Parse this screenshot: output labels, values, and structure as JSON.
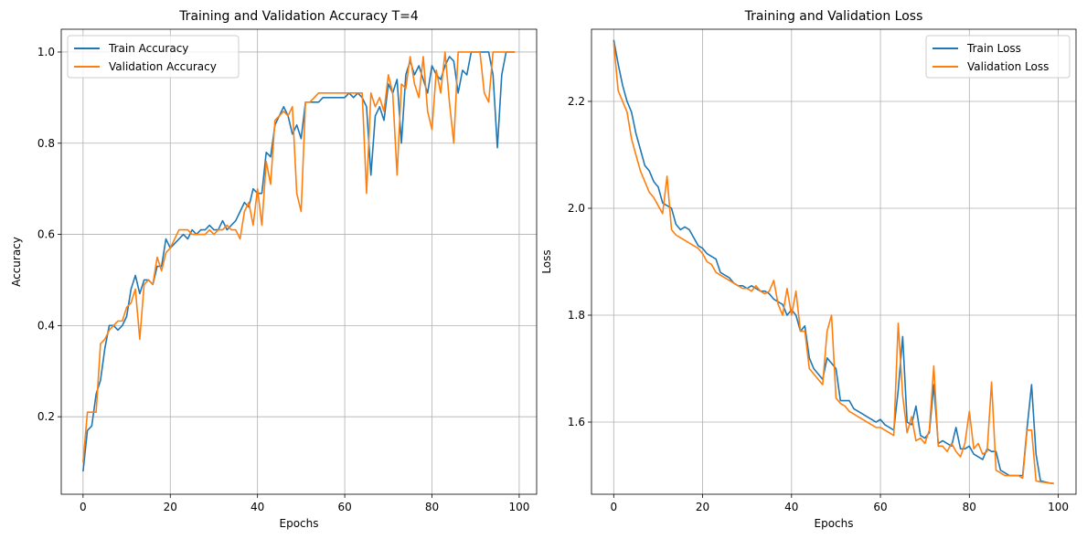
{
  "chart_data": [
    {
      "type": "line",
      "title": "Training and Validation Accuracy T=4",
      "xlabel": "Epochs",
      "ylabel": "Accuracy",
      "xlim": [
        -5,
        104
      ],
      "ylim": [
        0.03,
        1.05
      ],
      "xticks": [
        0,
        20,
        40,
        60,
        80,
        100
      ],
      "yticks": [
        0.2,
        0.4,
        0.6,
        0.8,
        1.0
      ],
      "xtick_labels": [
        "0",
        "20",
        "40",
        "60",
        "80",
        "100"
      ],
      "ytick_labels": [
        "0.2",
        "0.4",
        "0.6",
        "0.8",
        "1.0"
      ],
      "grid": true,
      "legend_position": "top-left",
      "series": [
        {
          "name": "Train Accuracy",
          "color": "#1f77b4",
          "values": [
            0.08,
            0.17,
            0.18,
            0.25,
            0.28,
            0.35,
            0.4,
            0.4,
            0.39,
            0.4,
            0.42,
            0.48,
            0.51,
            0.47,
            0.5,
            0.5,
            0.49,
            0.53,
            0.53,
            0.59,
            0.57,
            0.58,
            0.59,
            0.6,
            0.59,
            0.61,
            0.6,
            0.61,
            0.61,
            0.62,
            0.61,
            0.61,
            0.63,
            0.61,
            0.62,
            0.63,
            0.65,
            0.67,
            0.66,
            0.7,
            0.69,
            0.69,
            0.78,
            0.77,
            0.84,
            0.86,
            0.88,
            0.86,
            0.82,
            0.84,
            0.81,
            0.89,
            0.89,
            0.89,
            0.89,
            0.9,
            0.9,
            0.9,
            0.9,
            0.9,
            0.9,
            0.91,
            0.9,
            0.91,
            0.9,
            0.88,
            0.73,
            0.86,
            0.88,
            0.85,
            0.93,
            0.91,
            0.94,
            0.8,
            0.95,
            0.98,
            0.95,
            0.97,
            0.94,
            0.91,
            0.97,
            0.95,
            0.94,
            0.97,
            0.99,
            0.98,
            0.91,
            0.96,
            0.95,
            1.0,
            1.0,
            1.0,
            1.0,
            1.0,
            0.95,
            0.79,
            0.95,
            1.0,
            1.0,
            1.0
          ]
        },
        {
          "name": "Validation Accuracy",
          "color": "#ff7f0e",
          "values": [
            0.1,
            0.21,
            0.21,
            0.21,
            0.36,
            0.37,
            0.39,
            0.4,
            0.41,
            0.41,
            0.44,
            0.45,
            0.48,
            0.37,
            0.49,
            0.5,
            0.49,
            0.55,
            0.52,
            0.56,
            0.57,
            0.59,
            0.61,
            0.61,
            0.61,
            0.6,
            0.6,
            0.6,
            0.6,
            0.61,
            0.6,
            0.61,
            0.61,
            0.62,
            0.61,
            0.61,
            0.59,
            0.65,
            0.67,
            0.62,
            0.7,
            0.62,
            0.76,
            0.71,
            0.85,
            0.86,
            0.87,
            0.86,
            0.88,
            0.69,
            0.65,
            0.89,
            0.89,
            0.9,
            0.91,
            0.91,
            0.91,
            0.91,
            0.91,
            0.91,
            0.91,
            0.91,
            0.91,
            0.91,
            0.91,
            0.69,
            0.91,
            0.88,
            0.9,
            0.87,
            0.95,
            0.91,
            0.73,
            0.93,
            0.92,
            0.99,
            0.93,
            0.9,
            0.99,
            0.87,
            0.83,
            0.96,
            0.91,
            1.0,
            0.89,
            0.8,
            1.0,
            1.0,
            1.0,
            1.0,
            1.0,
            1.0,
            0.91,
            0.89,
            1.0,
            1.0,
            1.0,
            1.0,
            1.0,
            1.0
          ]
        }
      ]
    },
    {
      "type": "line",
      "title": "Training and Validation Loss",
      "xlabel": "Epochs",
      "ylabel": "Loss",
      "xlim": [
        -5,
        104
      ],
      "ylim": [
        1.465,
        2.335
      ],
      "xticks": [
        0,
        20,
        40,
        60,
        80,
        100
      ],
      "yticks": [
        1.6,
        1.8,
        2.0,
        2.2
      ],
      "xtick_labels": [
        "0",
        "20",
        "40",
        "60",
        "80",
        "100"
      ],
      "ytick_labels": [
        "1.6",
        "1.8",
        "2.0",
        "2.2"
      ],
      "grid": true,
      "legend_position": "top-right",
      "series": [
        {
          "name": "Train Loss",
          "color": "#1f77b4",
          "values": [
            2.315,
            2.27,
            2.23,
            2.2,
            2.18,
            2.14,
            2.11,
            2.08,
            2.07,
            2.05,
            2.04,
            2.01,
            2.005,
            2.0,
            1.97,
            1.96,
            1.965,
            1.96,
            1.945,
            1.93,
            1.925,
            1.915,
            1.91,
            1.905,
            1.88,
            1.875,
            1.87,
            1.86,
            1.855,
            1.855,
            1.85,
            1.855,
            1.85,
            1.845,
            1.845,
            1.84,
            1.83,
            1.825,
            1.82,
            1.8,
            1.81,
            1.8,
            1.77,
            1.78,
            1.72,
            1.7,
            1.69,
            1.68,
            1.72,
            1.71,
            1.7,
            1.64,
            1.64,
            1.64,
            1.625,
            1.62,
            1.615,
            1.61,
            1.605,
            1.6,
            1.605,
            1.595,
            1.59,
            1.585,
            1.66,
            1.76,
            1.6,
            1.595,
            1.63,
            1.575,
            1.57,
            1.58,
            1.67,
            1.56,
            1.565,
            1.56,
            1.555,
            1.59,
            1.55,
            1.55,
            1.555,
            1.54,
            1.535,
            1.53,
            1.55,
            1.545,
            1.545,
            1.51,
            1.505,
            1.5,
            1.5,
            1.5,
            1.5,
            1.59,
            1.67,
            1.54,
            1.49,
            1.488,
            1.486,
            1.485
          ]
        },
        {
          "name": "Validation Loss",
          "color": "#ff7f0e",
          "values": [
            2.31,
            2.22,
            2.2,
            2.18,
            2.13,
            2.1,
            2.07,
            2.05,
            2.03,
            2.02,
            2.005,
            1.99,
            2.06,
            1.96,
            1.95,
            1.945,
            1.94,
            1.935,
            1.93,
            1.925,
            1.915,
            1.9,
            1.895,
            1.88,
            1.875,
            1.87,
            1.865,
            1.86,
            1.855,
            1.85,
            1.85,
            1.845,
            1.855,
            1.845,
            1.84,
            1.845,
            1.865,
            1.82,
            1.8,
            1.85,
            1.8,
            1.845,
            1.77,
            1.77,
            1.7,
            1.69,
            1.68,
            1.67,
            1.77,
            1.8,
            1.645,
            1.635,
            1.63,
            1.62,
            1.615,
            1.61,
            1.605,
            1.6,
            1.595,
            1.59,
            1.59,
            1.585,
            1.58,
            1.575,
            1.785,
            1.65,
            1.58,
            1.61,
            1.565,
            1.57,
            1.56,
            1.585,
            1.705,
            1.555,
            1.555,
            1.545,
            1.56,
            1.545,
            1.535,
            1.56,
            1.62,
            1.55,
            1.56,
            1.54,
            1.545,
            1.675,
            1.51,
            1.505,
            1.5,
            1.5,
            1.5,
            1.5,
            1.495,
            1.585,
            1.585,
            1.49,
            1.488,
            1.487,
            1.486,
            1.485
          ]
        }
      ]
    }
  ]
}
